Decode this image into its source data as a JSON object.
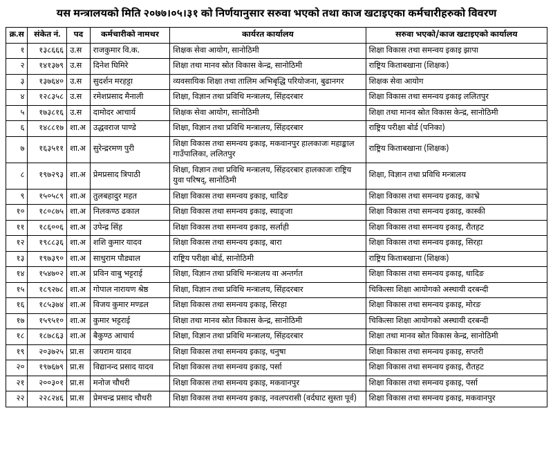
{
  "title": "यस मन्त्रालयको मिति २०७७।०५।३१ को निर्णयानुसार सरुवा भएको तथा काज खटाइएका कर्मचारीहरुको विवरण",
  "columns": [
    "क्र.स",
    "संकेत नं.",
    "पद",
    "कर्मचारीको नामथर",
    "कार्यरत कार्यालय",
    "सरुवा भएको/काज खटाइएको कार्यालय"
  ],
  "rows": [
    {
      "sn": "१",
      "code": "१३८६६६",
      "post": "उ.स",
      "name": "राजकुमार वि.क.",
      "office": "शिक्षक सेवा आयोग, सानोठिमी",
      "transfer": "शिक्षा विकास तथा समन्वय इकाइ झापा"
    },
    {
      "sn": "२",
      "code": "१४१३७९",
      "post": "उ.स",
      "name": "दिनेश घिमिरे",
      "office": "शिक्षा तथा मानव स्रोत विकास केन्द्र, सानोठिमी",
      "transfer": "राष्ट्रिय किताबखाना (शिक्षक)"
    },
    {
      "sn": "३",
      "code": "१३७६४०",
      "post": "उ.स",
      "name": "सुदर्शन मरहट्टा",
      "office": "व्यवसायिक शिक्षा तथा तालिम अभिबृद्धि परियोजना, बुढानगर",
      "transfer": "शिक्षक सेवा आयोग"
    },
    {
      "sn": "४",
      "code": "१२८३५८",
      "post": "उ.स",
      "name": "रमेशप्रसाद मैनाली",
      "office": "शिक्षा, विज्ञान तथा प्रविधि मन्त्रालय, सिंहदरबार",
      "transfer": "शिक्षा विकास तथा समन्वय इकाइ ललितपुर"
    },
    {
      "sn": "५",
      "code": "१७३८१६",
      "post": "उ.स",
      "name": "दामोदर आचार्य",
      "office": "शिक्षक सेवा आयोग, सानोठिमी",
      "transfer": "शिक्षा तथा मानव स्रोत विकास केन्द्र, सानोठिमी"
    },
    {
      "sn": "६",
      "code": "१४८८१७",
      "post": "शा.अ",
      "name": "उद्धवराज पाण्डे",
      "office": "शिक्षा, विज्ञान तथा प्रविधि मन्त्रालय, सिंहदरबार",
      "transfer": "राष्ट्रिय परीक्षा बोर्ड (पनिका)"
    },
    {
      "sn": "७",
      "code": "१६३५११",
      "post": "शा.अ",
      "name": "सुरेन्द्ररमण पुरी",
      "office": "शिक्षा विकास तथा समन्वय इकाइ, मकवानपुर हालकाजः महाङ्काल गाउँपालिका, ललितपुर",
      "transfer": "राष्ट्रिय किताबखाना (शिक्षक)"
    },
    {
      "sn": "८",
      "code": "१९७२९३",
      "post": "शा.अ",
      "name": "प्रेमप्रसाद त्रिपाठी",
      "office": "शिक्षा, विज्ञान तथा प्रविधि मन्त्रालय, सिंहदरबार हालकाजः राष्ट्रिय युवा परिषद्, सानोठिमी",
      "transfer": "शिक्षा, विज्ञान तथा प्रविधि मन्त्रालय"
    },
    {
      "sn": "९",
      "code": "१५०५८९",
      "post": "शा.अ",
      "name": "तुलबहादुर महत",
      "office": "शिक्षा विकास तथा समन्वय इकाइ, धादिङ",
      "transfer": "शिक्षा विकास तथा समन्वय इकाइ, काभ्रे"
    },
    {
      "sn": "१०",
      "code": "१८०८७५",
      "post": "शा.अ",
      "name": "निलकण्ठ ढकाल",
      "office": "शिक्षा विकास तथा समन्वय इकाइ, स्याङ्जा",
      "transfer": "शिक्षा विकास तथा समन्वय इकाइ, कास्की"
    },
    {
      "sn": "११",
      "code": "१८६००६",
      "post": "शा.अ",
      "name": "उपेन्द्र सिंह",
      "office": "शिक्षा विकास तथा समन्वय इकाइ, सर्लाही",
      "transfer": "शिक्षा विकास तथा समन्वय इकाइ, रौतहट"
    },
    {
      "sn": "१२",
      "code": "१९८८३६",
      "post": "शा.अ",
      "name": "शशि कुमार यादव",
      "office": "शिक्षा विकास तथा समन्वय इकाइ, बारा",
      "transfer": "शिक्षा विकास तथा समन्वय इकाइ, सिरहा"
    },
    {
      "sn": "१३",
      "code": "१९७३९०",
      "post": "शा.अ",
      "name": "साधुराम पौड्याल",
      "office": "राष्ट्रिय परीक्षा बोर्ड, सानोठिमी",
      "transfer": "राष्ट्रिय किताबखाना (शिक्षक)"
    },
    {
      "sn": "१४",
      "code": "१५४७०२",
      "post": "शा.अ",
      "name": "प्रविन वाबु भट्टराई",
      "office": "शिक्षा, विज्ञान तथा प्रविधि मन्त्रालय वा अन्तर्गत",
      "transfer": "शिक्षा विकास तथा समन्वय इकाइ, धादिङ"
    },
    {
      "sn": "१५",
      "code": "१८९२७८",
      "post": "शा.अ",
      "name": "गोपाल नारायण श्रेष्ठ",
      "office": "शिक्षा, विज्ञान तथा प्रविधि मन्त्रालय, सिंहदरबार",
      "transfer": "चिकित्सा शिक्षा आयोगको अस्थायी दरबन्दी"
    },
    {
      "sn": "१६",
      "code": "१८५३७४",
      "post": "शा.अ",
      "name": "विजय कुमार मण्डल",
      "office": "शिक्षा विकास तथा समन्वय इकाइ, सिरहा",
      "transfer": "शिक्षा विकास तथा समन्वय इकाइ, मोरङ"
    },
    {
      "sn": "१७",
      "code": "१५९५१०",
      "post": "शा.अ",
      "name": "कुमार भट्टराई",
      "office": "शिक्षा तथा मानव स्रोत विकास केन्द्र, सानोठिमी",
      "transfer": "चिकित्सा शिक्षा आयोगको अस्थायी दरबन्दी"
    },
    {
      "sn": "१८",
      "code": "१८७८६३",
      "post": "शा.अ",
      "name": "बैकुण्ठ आचार्य",
      "office": "शिक्षा, विज्ञान तथा प्रविधि मन्त्रालय, सिंहदरबार",
      "transfer": "शिक्षा तथा मानव स्रोत विकास केन्द्र, सानोठिमी"
    },
    {
      "sn": "१९",
      "code": "२०३७२५",
      "post": "प्रा.स",
      "name": "जयराम यादव",
      "office": "शिक्षा विकास तथा समन्वय इकाइ, धनुषा",
      "transfer": "शिक्षा विकास तथा समन्वय इकाइ, सप्तरी"
    },
    {
      "sn": "२०",
      "code": "१९७६७९",
      "post": "प्रा.स",
      "name": "विद्यानन्द प्रसाद यादव",
      "office": "शिक्षा विकास तथा समन्वय इकाइ, पर्सा",
      "transfer": "शिक्षा विकास तथा समन्वय इकाइ, रौतहट"
    },
    {
      "sn": "२१",
      "code": "२००३०१",
      "post": "प्रा.स",
      "name": "मनोज चौधरी",
      "office": "शिक्षा विकास तथा समन्वय इकाइ, मकवानपुर",
      "transfer": "शिक्षा विकास तथा समन्वय इकाइ, पर्सा"
    },
    {
      "sn": "२२",
      "code": "२२८२४६",
      "post": "प्रा.स",
      "name": "प्रेमचन्द्र प्रसाद चौधरी",
      "office": "शिक्षा विकास तथा समन्वय इकाइ, नवलपरासी (वर्दघाट सुस्ता पूर्व)",
      "transfer": "शिक्षा विकास तथा समन्वय इकाइ, मकवानपुर"
    }
  ]
}
